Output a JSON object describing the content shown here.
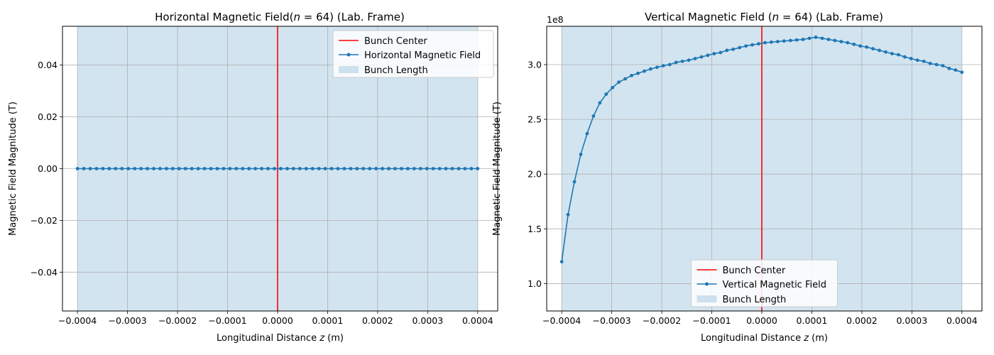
{
  "chart_data": [
    {
      "type": "line",
      "title": "Horizontal Magnetic Field(",
      "title_n": "n",
      "title_rest": " = 64) (Lab. Frame)",
      "xlabel": "Longitudinal Distance ",
      "xlabel_var": "z",
      "xlabel_unit": " (m)",
      "ylabel": "Magnetic Field Magnitude (T)",
      "xlim": [
        -0.00043,
        0.00044
      ],
      "ylim": [
        -0.055,
        0.055
      ],
      "x_ticks": [
        -0.0004,
        -0.0003,
        -0.0002,
        -0.0001,
        0.0,
        0.0001,
        0.0002,
        0.0003,
        0.0004
      ],
      "x_tick_labels": [
        "−0.0004",
        "−0.0003",
        "−0.0002",
        "−0.0001",
        "0.0000",
        "0.0001",
        "0.0002",
        "0.0003",
        "0.0004"
      ],
      "y_ticks": [
        -0.04,
        -0.02,
        0.0,
        0.02,
        0.04
      ],
      "y_tick_labels": [
        "−0.04",
        "−0.02",
        "0.00",
        "0.02",
        "0.04"
      ],
      "y_offset_label": "",
      "grid": true,
      "bunch_span": [
        -0.0004,
        0.0004
      ],
      "bunch_center": 0.0,
      "legend_position": "top-right",
      "legend": [
        "Bunch Center",
        "Horizontal Magnetic Field",
        "Bunch Length"
      ],
      "series": [
        {
          "name": "Horizontal Magnetic Field",
          "x_start": -0.0004,
          "x_end": 0.0004,
          "n_points": 64,
          "values": [
            0,
            0,
            0,
            0,
            0,
            0,
            0,
            0,
            0,
            0,
            0,
            0,
            0,
            0,
            0,
            0,
            0,
            0,
            0,
            0,
            0,
            0,
            0,
            0,
            0,
            0,
            0,
            0,
            0,
            0,
            0,
            0,
            0,
            0,
            0,
            0,
            0,
            0,
            0,
            0,
            0,
            0,
            0,
            0,
            0,
            0,
            0,
            0,
            0,
            0,
            0,
            0,
            0,
            0,
            0,
            0,
            0,
            0,
            0,
            0,
            0,
            0,
            0,
            0
          ]
        }
      ]
    },
    {
      "type": "line",
      "title": "Vertical Magnetic Field (",
      "title_n": "n",
      "title_rest": " = 64) (Lab. Frame)",
      "xlabel": "Longitudinal Distance ",
      "xlabel_var": "z",
      "xlabel_unit": " (m)",
      "ylabel": "Magnetic Field Magnitude (T)",
      "xlim": [
        -0.00043,
        0.00044
      ],
      "ylim": [
        75000000.0,
        335000000.0
      ],
      "x_ticks": [
        -0.0004,
        -0.0003,
        -0.0002,
        -0.0001,
        0.0,
        0.0001,
        0.0002,
        0.0003,
        0.0004
      ],
      "x_tick_labels": [
        "−0.0004",
        "−0.0003",
        "−0.0002",
        "−0.0001",
        "0.0000",
        "0.0001",
        "0.0002",
        "0.0003",
        "0.0004"
      ],
      "y_ticks": [
        100000000.0,
        150000000.0,
        200000000.0,
        250000000.0,
        300000000.0
      ],
      "y_tick_labels": [
        "1.0",
        "1.5",
        "2.0",
        "2.5",
        "3.0"
      ],
      "y_offset_label": "1e8",
      "grid": true,
      "bunch_span": [
        -0.0004,
        0.0004
      ],
      "bunch_center": 0.0,
      "legend_position": "lower-center",
      "legend": [
        "Bunch Center",
        "Vertical Magnetic Field",
        "Bunch Length"
      ],
      "series": [
        {
          "name": "Vertical Magnetic Field",
          "x_start": -0.0004,
          "x_end": 0.0004,
          "n_points": 64,
          "values": [
            120000000.0,
            163000000.0,
            193000000.0,
            218000000.0,
            237000000.0,
            253000000.0,
            265000000.0,
            273000000.0,
            279000000.0,
            284000000.0,
            287000000.0,
            290000000.0,
            292000000.0,
            294000000.0,
            296000000.0,
            297500000.0,
            299000000.0,
            300000000.0,
            302000000.0,
            303000000.0,
            304000000.0,
            305500000.0,
            307000000.0,
            308500000.0,
            310000000.0,
            311000000.0,
            313000000.0,
            314000000.0,
            315500000.0,
            317000000.0,
            318000000.0,
            319000000.0,
            320000000.0,
            320500000.0,
            321000000.0,
            321500000.0,
            322000000.0,
            322500000.0,
            323000000.0,
            324000000.0,
            325000000.0,
            324000000.0,
            323000000.0,
            322000000.0,
            321000000.0,
            320000000.0,
            318500000.0,
            317000000.0,
            316000000.0,
            314500000.0,
            313000000.0,
            311500000.0,
            310000000.0,
            309000000.0,
            307000000.0,
            305500000.0,
            304000000.0,
            303000000.0,
            301000000.0,
            300000000.0,
            299000000.0,
            296500000.0,
            295000000.0,
            293000000.0
          ]
        }
      ]
    }
  ]
}
